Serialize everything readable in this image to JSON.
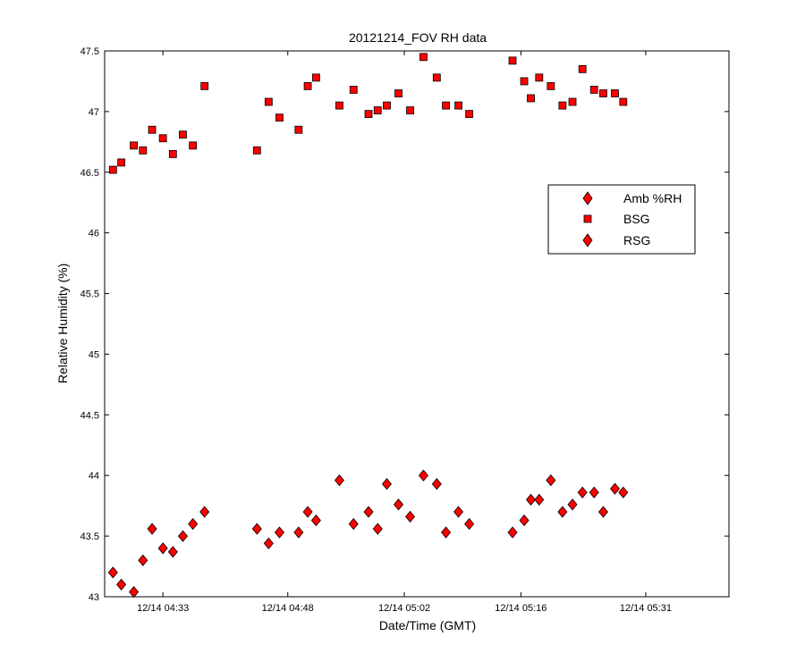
{
  "chart_data": {
    "type": "scatter",
    "title": "20121214_FOV RH data",
    "xlabel": "Date/Time (GMT)",
    "ylabel": "Relative Humidity (%)",
    "xlim": [
      "12/14 04:26",
      "12/14 05:41"
    ],
    "ylim": [
      43,
      47.5
    ],
    "x_ticks": [
      "12/14 04:33",
      "12/14 04:48",
      "12/14 05:02",
      "12/14 05:16",
      "12/14 05:31"
    ],
    "x_tick_minutes": [
      7,
      22,
      36,
      50,
      65
    ],
    "y_ticks": [
      "43",
      "43.5",
      "44",
      "44.5",
      "45",
      "45.5",
      "46",
      "46.5",
      "47",
      "47.5"
    ],
    "grid": false,
    "legend_position": "right",
    "legend": [
      "Amb %RH",
      "BSG",
      "RSG"
    ],
    "series": [
      {
        "name": "BSG",
        "marker": "square",
        "color": "#ff0000",
        "x": [
          1,
          2,
          3.5,
          4.6,
          5.7,
          7,
          8.2,
          9.4,
          10.6,
          12,
          18.3,
          19.7,
          21,
          23.3,
          24.4,
          25.4,
          28.2,
          29.9,
          31.7,
          32.8,
          33.9,
          35.3,
          36.7,
          38.3,
          39.9,
          41,
          42.5,
          43.8,
          49,
          50.4,
          51.2,
          52.2,
          53.6,
          55,
          56.2,
          57.4,
          58.8,
          59.9,
          61.3,
          62.3
        ],
        "y": [
          46.52,
          46.58,
          46.72,
          46.68,
          46.85,
          46.78,
          46.65,
          46.81,
          46.72,
          47.21,
          46.68,
          47.08,
          46.95,
          46.85,
          47.21,
          47.28,
          47.05,
          47.18,
          46.98,
          47.01,
          47.05,
          47.15,
          47.01,
          47.45,
          47.28,
          47.05,
          47.05,
          46.98,
          47.42,
          47.25,
          47.11,
          47.28,
          47.21,
          47.05,
          47.08,
          47.35,
          47.18,
          47.15,
          47.15,
          47.08
        ]
      },
      {
        "name": "RSG",
        "marker": "diamond",
        "color": "#ff0000",
        "x": [
          1,
          2,
          3.5,
          4.6,
          5.7,
          7,
          8.2,
          9.4,
          10.6,
          12,
          18.3,
          19.7,
          21,
          23.3,
          24.4,
          25.4,
          28.2,
          29.9,
          31.7,
          32.8,
          33.9,
          35.3,
          36.7,
          38.3,
          39.9,
          41,
          42.5,
          43.8,
          49,
          50.4,
          51.2,
          52.2,
          53.6,
          55,
          56.2,
          57.4,
          58.8,
          59.9,
          61.3,
          62.3
        ],
        "y": [
          43.2,
          43.1,
          43.04,
          43.3,
          43.56,
          43.4,
          43.37,
          43.5,
          43.6,
          43.7,
          43.56,
          43.44,
          43.53,
          43.53,
          43.7,
          43.63,
          43.96,
          43.6,
          43.7,
          43.56,
          43.93,
          43.76,
          43.66,
          44,
          43.93,
          43.53,
          43.7,
          43.6,
          43.53,
          43.63,
          43.8,
          43.8,
          43.96,
          43.7,
          43.76,
          43.86,
          43.86,
          43.7,
          43.89,
          43.86
        ]
      }
    ]
  }
}
